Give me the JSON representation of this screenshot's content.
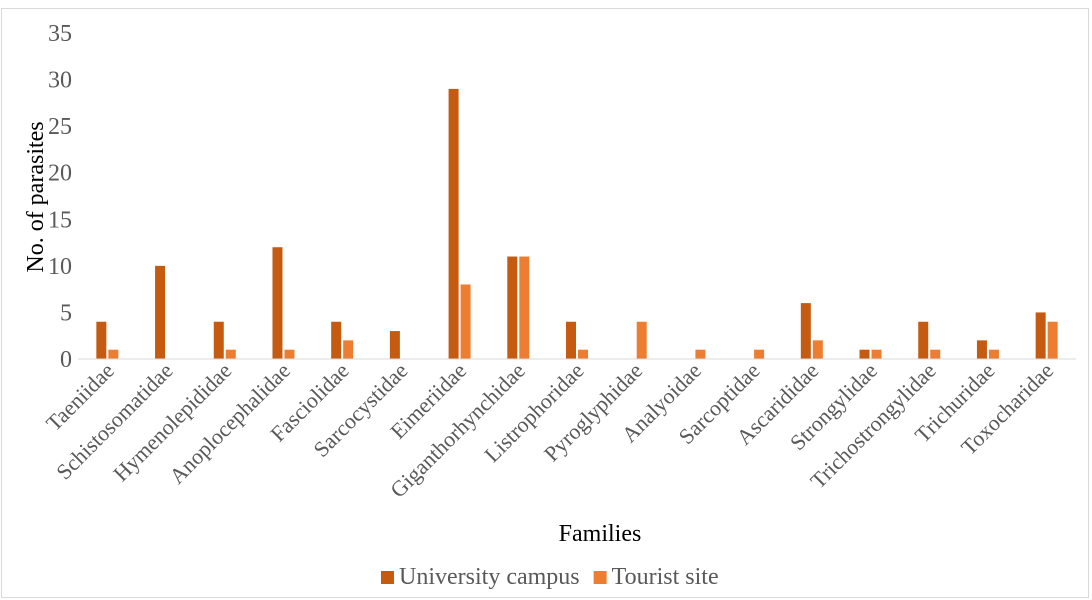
{
  "chart_data": {
    "type": "bar",
    "title": "",
    "xlabel": "Families",
    "ylabel": "No. of parasites",
    "ylim": [
      0,
      35
    ],
    "yticks": [
      0,
      5,
      10,
      15,
      20,
      25,
      30,
      35
    ],
    "grid": false,
    "legend_position": "bottom",
    "categories": [
      "Taeniidae",
      "Schistosomatidae",
      "Hymenolepididae",
      "Anoplocephalidae",
      "Fasciolidae",
      "Sarcocystidae",
      "Eimeriidae",
      "Giganthorhynchidae",
      "Listrophoridae",
      "Pyroglyphidae",
      "Analyoidae",
      "Sarcoptidae",
      "Ascarididae",
      "Strongylidae",
      "Trichostrongylidae",
      "Trichuridae",
      "Toxocharidae"
    ],
    "series": [
      {
        "name": "University campus",
        "color": "#c55a11",
        "values": [
          4,
          10,
          4,
          12,
          4,
          3,
          29,
          11,
          4,
          0,
          0,
          0,
          6,
          1,
          4,
          2,
          5
        ]
      },
      {
        "name": "Tourist site",
        "color": "#ed7d31",
        "values": [
          1,
          0,
          1,
          1,
          2,
          0,
          8,
          11,
          1,
          4,
          1,
          1,
          2,
          1,
          1,
          1,
          4
        ]
      }
    ]
  }
}
